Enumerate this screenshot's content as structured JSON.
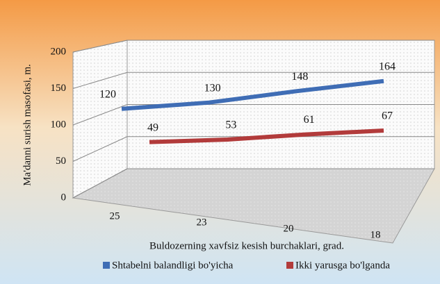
{
  "chart_data": {
    "type": "line",
    "x_label": "Buldozerning  xavfsiz  kesish  burchaklari,  grad.",
    "y_label": "Ma'danni  surish masofasi,  m.",
    "categories": [
      "25",
      "23",
      "20",
      "18"
    ],
    "series": [
      {
        "name": "Shtabelni balandligi bo'yicha",
        "color": "#3f6db5",
        "values": [
          120,
          130,
          148,
          164
        ]
      },
      {
        "name": "Ikki yarusga bo'lganda",
        "color": "#b23b3b",
        "values": [
          49,
          53,
          61,
          67
        ]
      }
    ],
    "ylim": [
      0,
      200
    ],
    "yticks": [
      0,
      50,
      100,
      150,
      200
    ],
    "grid": true,
    "legend": "bottom"
  }
}
